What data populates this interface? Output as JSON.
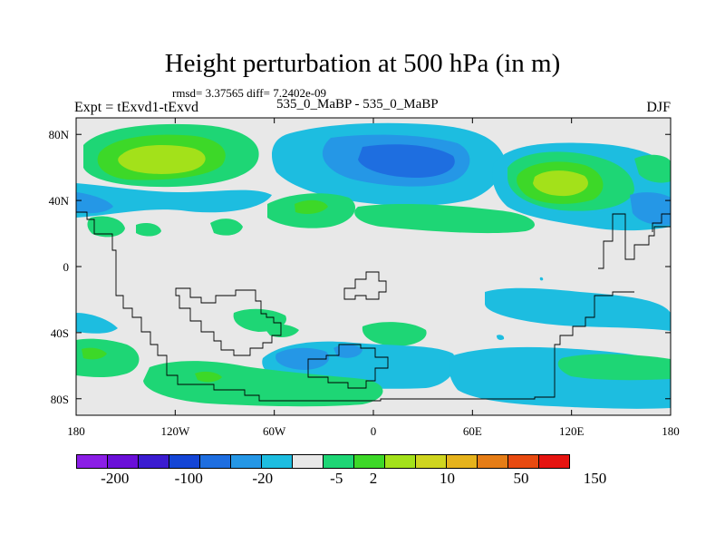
{
  "title": "Height perturbation at 500 hPa (in m)",
  "stats": "rmsd= 3.37565 diff= 7.2402e-09",
  "left_label": "Expt = tExvd1-tExvd",
  "center_label": "535_0_MaBP - 535_0_MaBP",
  "right_label": "DJF",
  "axes": {
    "x_ticks": [
      "180",
      "120W",
      "60W",
      "0",
      "60E",
      "120E",
      "180"
    ],
    "y_ticks": [
      "80N",
      "40N",
      "0",
      "40S",
      "80S"
    ]
  },
  "colorbar": {
    "colors": [
      "#8b1ee6",
      "#6a0fd8",
      "#3b1cd1",
      "#1445d6",
      "#1e6ee0",
      "#2597e6",
      "#1dbde0",
      "#e8e8e8",
      "#1ed675",
      "#3dd828",
      "#a3e11a",
      "#cfd51f",
      "#e6b31c",
      "#e67d16",
      "#e84a10",
      "#e61410"
    ],
    "labels": [
      "-200",
      "-100",
      "-20",
      "-5",
      "2",
      "10",
      "50",
      "150"
    ]
  },
  "palette": {
    "land_gray": "#e8e8e8",
    "light_blue": "#1dbde0",
    "mid_blue": "#2597e6",
    "dark_blue": "#1e6ee0",
    "green": "#1ed675",
    "bright_green": "#3dd828",
    "yellow_green": "#a3e11a"
  }
}
